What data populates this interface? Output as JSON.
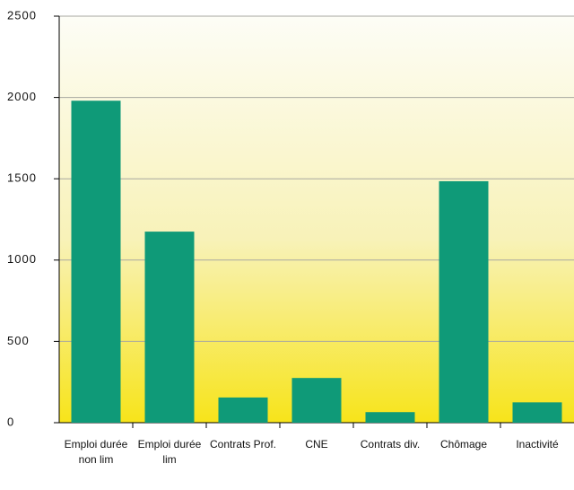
{
  "chart_data": {
    "type": "bar",
    "categories": [
      "Emploi durée non lim",
      "Emploi durée lim",
      "Contrats Prof.",
      "CNE",
      "Contrats div.",
      "Chômage",
      "Inactivité"
    ],
    "values": [
      1980,
      1175,
      155,
      275,
      65,
      1485,
      125
    ],
    "color": "#0f9a78",
    "ylim": [
      0,
      2500
    ],
    "yticks": [
      0,
      500,
      1000,
      1500,
      2000,
      2500
    ],
    "grid": true
  }
}
